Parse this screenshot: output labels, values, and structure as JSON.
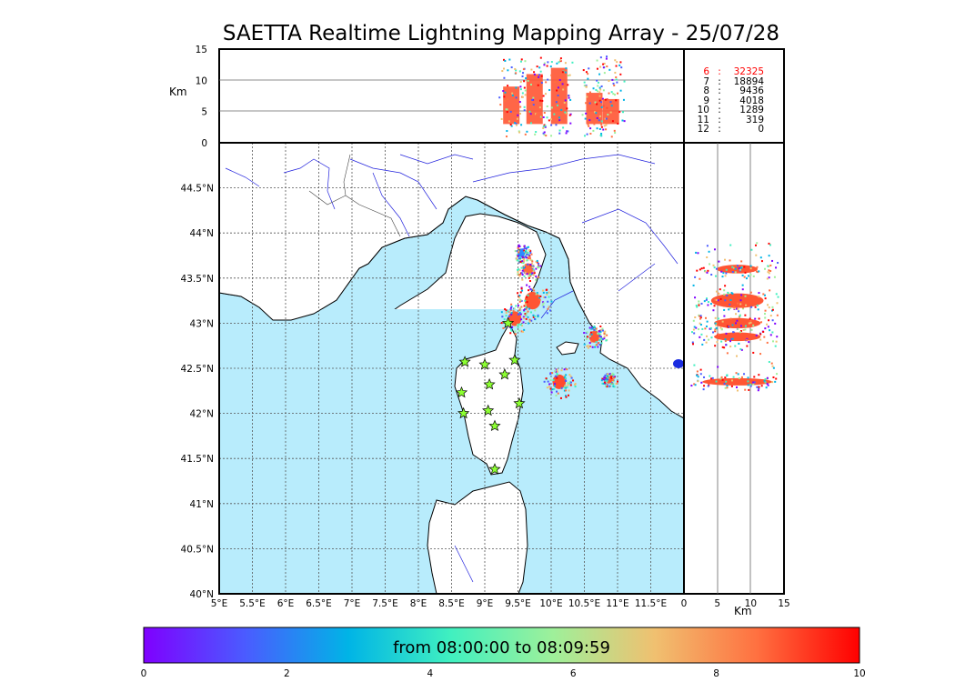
{
  "chart_data": {
    "type": "scatter",
    "title": "SAETTA Realtime Lightning Mapping Array - 25/07/28",
    "panels": {
      "altitude_lon": {
        "ylabel": "Km",
        "ylim": [
          0,
          15
        ],
        "yticks": [
          "0",
          "5",
          "10",
          "15"
        ]
      },
      "map": {
        "xlim": [
          5.0,
          12.0
        ],
        "ylim": [
          40.0,
          45.0
        ],
        "xticks": [
          "5°E",
          "5.5°E",
          "6°E",
          "6.5°E",
          "7°E",
          "7.5°E",
          "8°E",
          "8.5°E",
          "9°E",
          "9.5°E",
          "10°E",
          "10.5°E",
          "11°E",
          "11.5°E"
        ],
        "yticks": [
          "40°N",
          "40.5°N",
          "41°N",
          "41.5°N",
          "42°N",
          "42.5°N",
          "43°N",
          "43.5°N",
          "44°N",
          "44.5°N"
        ],
        "grid": true,
        "stations": [
          [
            8.7,
            42.57
          ],
          [
            9.0,
            42.54
          ],
          [
            9.45,
            42.59
          ],
          [
            9.3,
            42.43
          ],
          [
            9.07,
            42.32
          ],
          [
            8.65,
            42.23
          ],
          [
            9.52,
            42.11
          ],
          [
            9.05,
            42.03
          ],
          [
            8.68,
            42.0
          ],
          [
            9.15,
            41.86
          ],
          [
            9.15,
            41.38
          ],
          [
            9.35,
            43.0
          ]
        ],
        "clusters": [
          {
            "lon": 9.72,
            "lat": 43.25,
            "r": 0.12,
            "color": "#ff5533"
          },
          {
            "lon": 9.65,
            "lat": 43.6,
            "r": 0.08,
            "color": "#ff6a3a"
          },
          {
            "lon": 9.45,
            "lat": 43.05,
            "r": 0.1,
            "color": "#ff5533"
          },
          {
            "lon": 10.12,
            "lat": 42.35,
            "r": 0.1,
            "color": "#ff4a2e"
          },
          {
            "lon": 10.65,
            "lat": 42.85,
            "r": 0.08,
            "color": "#ff5533"
          },
          {
            "lon": 10.87,
            "lat": 42.37,
            "r": 0.05,
            "color": "#ff5533"
          },
          {
            "lon": 9.55,
            "lat": 43.78,
            "r": 0.06,
            "color": "#2a8cff"
          }
        ]
      },
      "altitude_lat": {
        "xlabel": "Km",
        "xlim": [
          0,
          15
        ],
        "xticks": [
          "0",
          "5",
          "10",
          "15"
        ]
      }
    },
    "counts": [
      {
        "level": "6",
        "count": "32325",
        "highlight": true
      },
      {
        "level": "7",
        "count": "18894",
        "highlight": false
      },
      {
        "level": "8",
        "count": "9436",
        "highlight": false
      },
      {
        "level": "9",
        "count": "4018",
        "highlight": false
      },
      {
        "level": "10",
        "count": "1289",
        "highlight": false
      },
      {
        "level": "11",
        "count": "319",
        "highlight": false
      },
      {
        "level": "12",
        "count": "0",
        "highlight": false
      }
    ],
    "colorbar": {
      "label": "from 08:00:00 to 08:09:59",
      "min": 0,
      "max": 10,
      "ticks": [
        "0",
        "2",
        "4",
        "6",
        "8",
        "10"
      ],
      "colors": [
        "#7f00ff",
        "#4a5cff",
        "#00b4e6",
        "#40f0c0",
        "#9ef09a",
        "#f0c070",
        "#ff7040",
        "#ff0000"
      ]
    },
    "colors": {
      "sea": "#b8ecfc",
      "land": "#ffffff",
      "coast": "#000000",
      "river": "#2222dd",
      "station": "#8cff32",
      "highlight_text": "#ff0000"
    }
  }
}
